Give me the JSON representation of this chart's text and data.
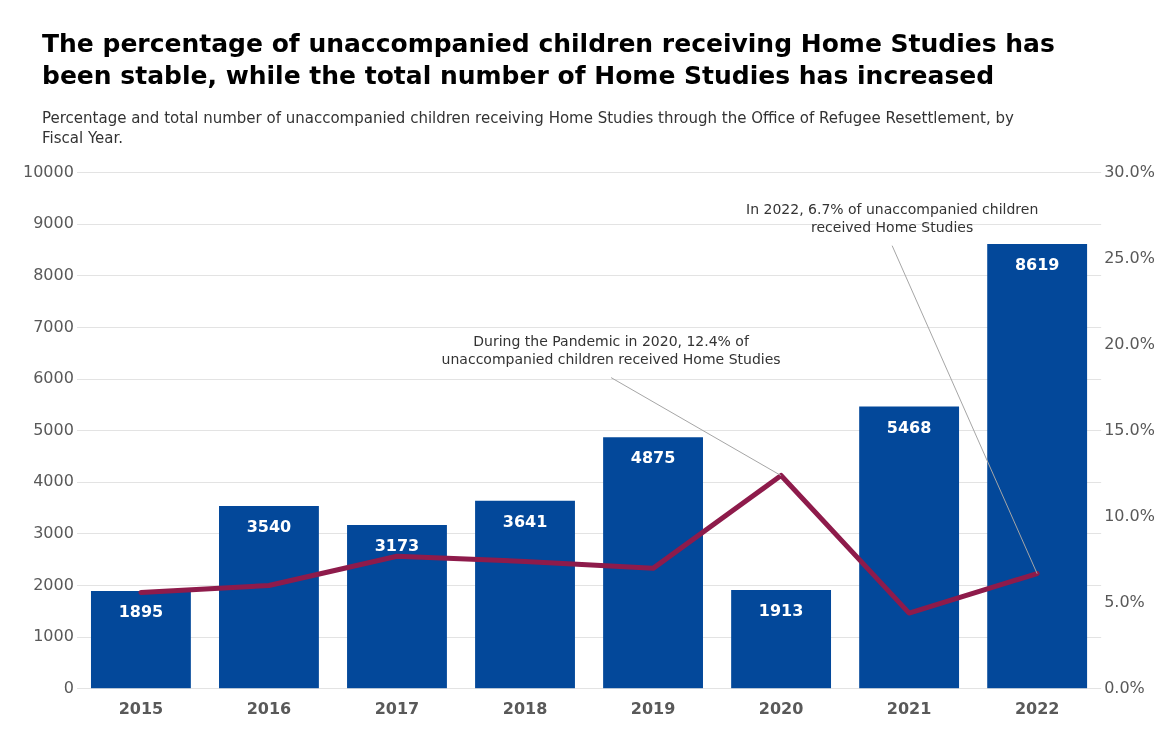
{
  "chart_data": {
    "type": "bar",
    "title": "The percentage of unaccompanied children receiving Home Studies has been stable, while the total number of Home Studies has increased",
    "subtitle": "Percentage and total number of unaccompanied children receiving Home Studies through the Office of Refugee Resettlement, by Fiscal Year.",
    "categories": [
      "2015",
      "2016",
      "2017",
      "2018",
      "2019",
      "2020",
      "2021",
      "2022"
    ],
    "series": [
      {
        "color": "#03489a",
        "values": [
          1895,
          3540,
          3173,
          3641,
          4875,
          1913,
          5468,
          8619
        ],
        "value_labels": [
          "1895",
          "3540",
          "3173",
          "3641",
          "4875",
          "1913",
          "5468",
          "8619"
        ]
      },
      {
        "type": "line",
        "axis": "y2",
        "color": "#8e1b4b",
        "values": [
          5.6,
          6.0,
          7.7,
          7.4,
          7.0,
          12.4,
          4.4,
          6.7
        ]
      }
    ],
    "ylim": [
      0,
      10000
    ],
    "yticks": [
      0,
      1000,
      2000,
      3000,
      4000,
      5000,
      6000,
      7000,
      8000,
      9000,
      10000
    ],
    "y2lim": [
      0,
      30
    ],
    "y2ticks": [
      {
        "value": 0,
        "label": "0.0%"
      },
      {
        "value": 5,
        "label": "5.0%"
      },
      {
        "value": 10,
        "label": "10.0%"
      },
      {
        "value": 15,
        "label": "15.0%"
      },
      {
        "value": 20,
        "label": "20.0%"
      },
      {
        "value": 25,
        "label": "25.0%"
      },
      {
        "value": 30,
        "label": "30.0%"
      }
    ],
    "grid": "y",
    "legend": false,
    "annotations": [
      {
        "text": "During the Pandemic in 2020, 12.4% of unaccompanied children received Home Studies",
        "x": "2020",
        "y": 4130
      },
      {
        "text": "In 2022, 6.7% of unaccompanied children received Home Studies",
        "x": "2022",
        "y": 2230
      }
    ]
  }
}
